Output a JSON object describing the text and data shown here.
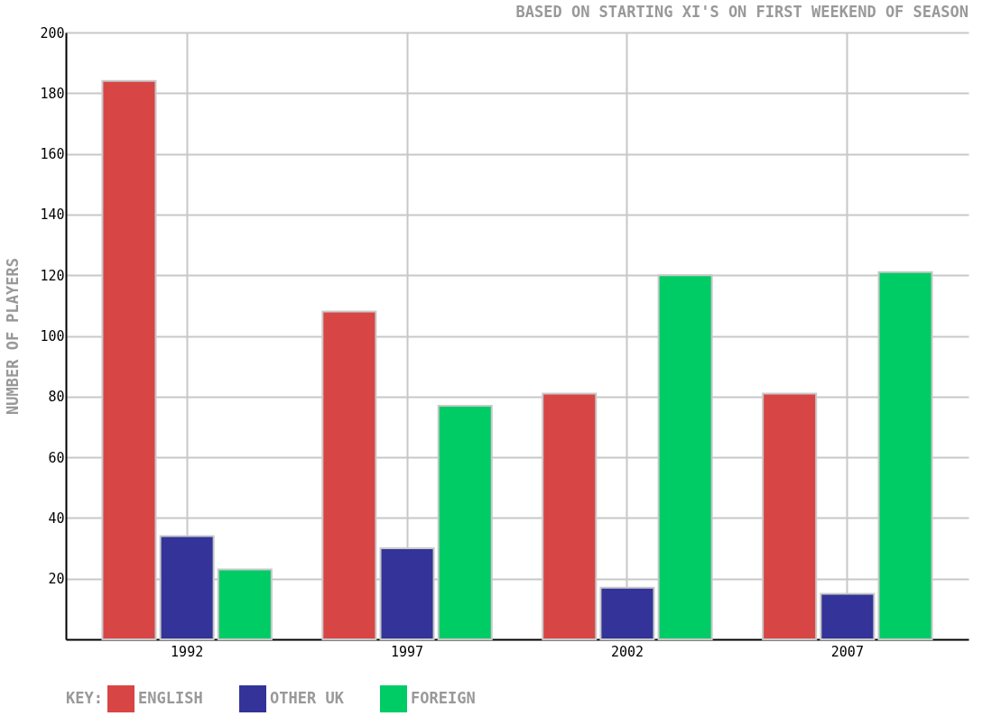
{
  "chart_data": {
    "type": "bar",
    "title": "BASED ON STARTING XI'S ON FIRST WEEKEND OF SEASON",
    "ylabel": "NUMBER OF PLAYERS",
    "legend_title": "KEY:",
    "categories": [
      "1992",
      "1997",
      "2002",
      "2007"
    ],
    "series": [
      {
        "name": "ENGLISH",
        "color": "#d84545",
        "values": [
          184,
          108,
          81,
          81
        ]
      },
      {
        "name": "OTHER UK",
        "color": "#333399",
        "values": [
          34,
          30,
          17,
          15
        ]
      },
      {
        "name": "FOREIGN",
        "color": "#00cc66",
        "values": [
          23,
          77,
          120,
          121
        ]
      }
    ],
    "ylim": [
      0,
      200
    ],
    "yticks": [
      20,
      40,
      60,
      80,
      100,
      120,
      140,
      160,
      180,
      200
    ],
    "grid": true,
    "legend": "bottom"
  }
}
